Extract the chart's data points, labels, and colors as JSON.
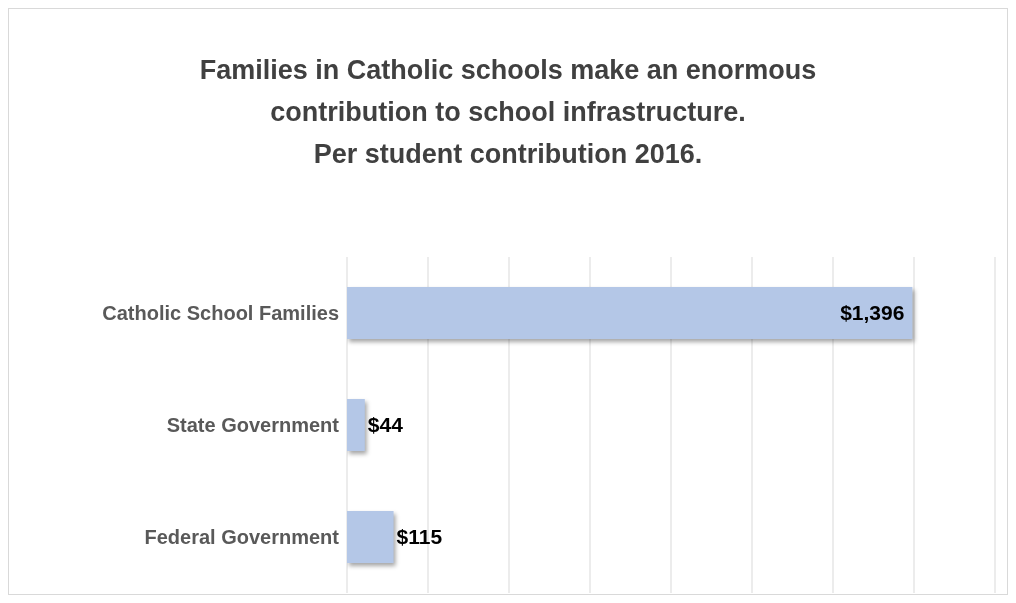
{
  "chart_data": {
    "type": "bar",
    "orientation": "horizontal",
    "title": "Families in Catholic schools make an enormous contribution to school infrastructure.\nPer student contribution 2016.",
    "categories": [
      "Catholic School Families",
      "State Government",
      "Federal Government"
    ],
    "values": [
      1396,
      44,
      115
    ],
    "color": "#b4c7e7",
    "value_labels": [
      "$1,396",
      "$44",
      "$115"
    ],
    "xlim": [
      0,
      1600
    ],
    "grid": "x",
    "tick_labels": "y"
  }
}
